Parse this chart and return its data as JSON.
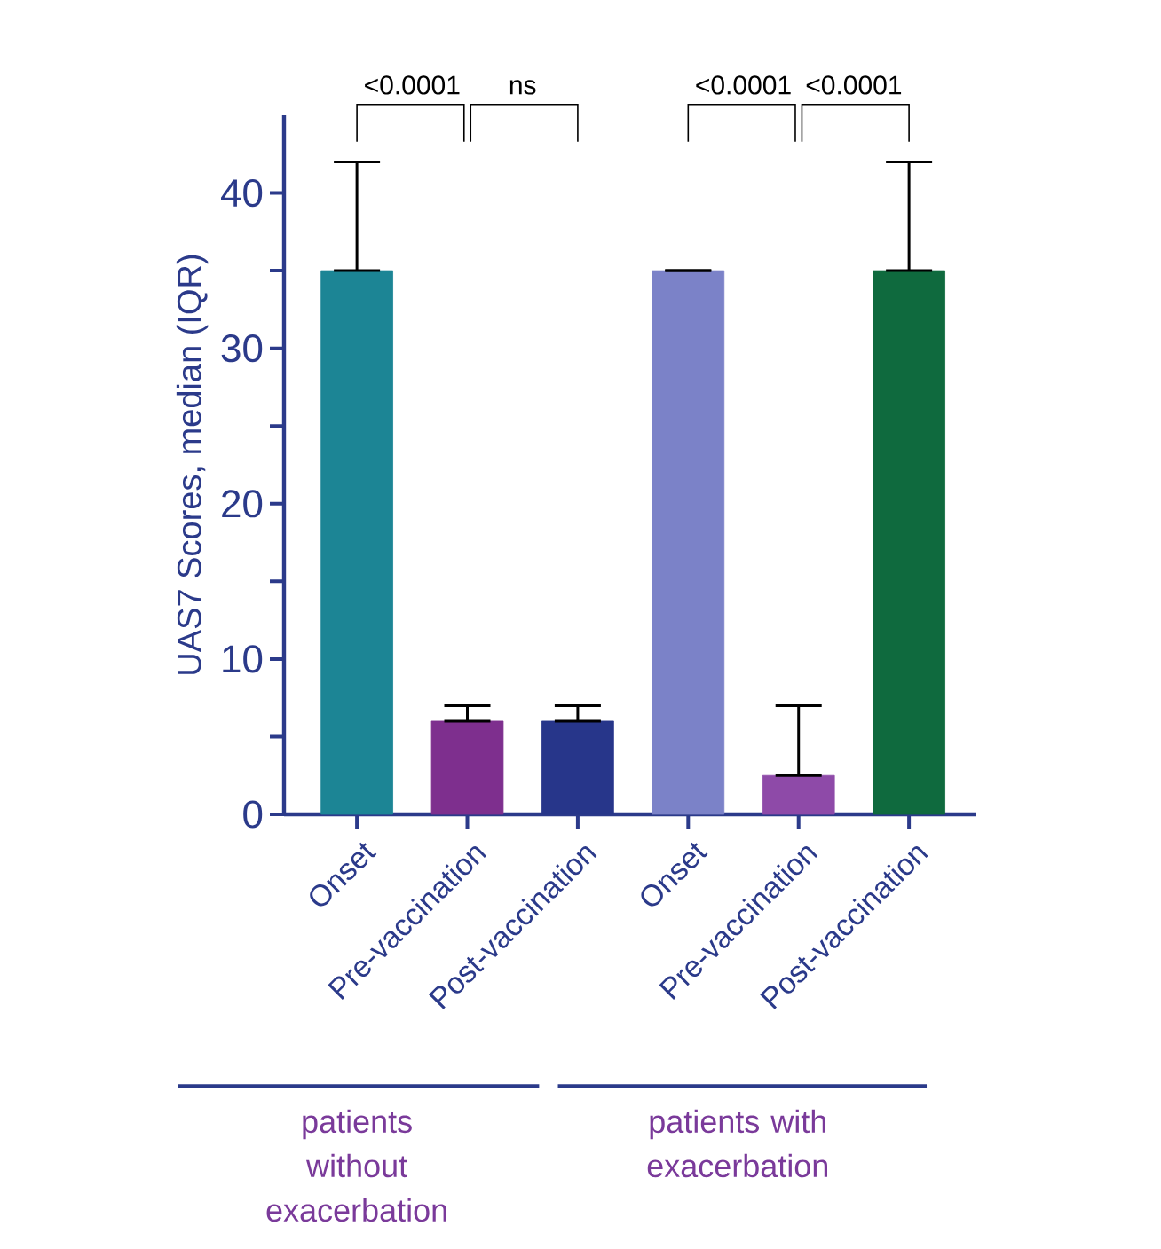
{
  "chart_data": {
    "type": "bar",
    "ylabel": "UAS7 Scores, median (IQR)",
    "categories": [
      "Onset",
      "Pre-vaccination",
      "Post-vaccination",
      "Onset",
      "Pre-vaccination",
      "Post-vaccination"
    ],
    "values": [
      35,
      6,
      6,
      35,
      2.5,
      35
    ],
    "colors": [
      "#1c8595",
      "#7e2f8e",
      "#27368a",
      "#7b82c8",
      "#8e4aa8",
      "#0f6a3e"
    ],
    "errors": [
      [
        35,
        42
      ],
      [
        6,
        7
      ],
      [
        6,
        7
      ],
      [
        35,
        35
      ],
      [
        2.5,
        7
      ],
      [
        35,
        42
      ]
    ],
    "ylim": [
      0,
      45
    ],
    "yticks": [
      0,
      {
        "value": 5,
        "label": null
      },
      10,
      {
        "value": 15,
        "label": null
      },
      20,
      {
        "value": 25,
        "label": null
      },
      30,
      {
        "value": 35,
        "label": null
      },
      40
    ],
    "annotations": [
      "<0.0001",
      "ns",
      "<0.0001",
      "<0.0001",
      "patients without exacerbation",
      "patients with exacerbation"
    ]
  }
}
